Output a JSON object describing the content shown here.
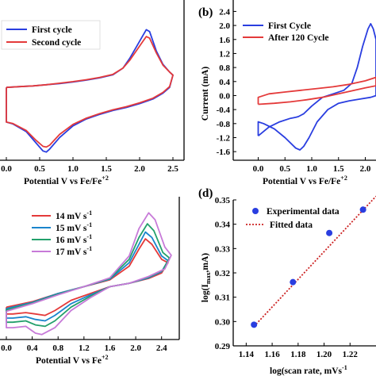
{
  "chart_data": [
    {
      "panel": "",
      "type": "line",
      "xlabel": "Potential V vs Fe/Fe",
      "xlabel_sup": "+2",
      "ylabel": "",
      "xlim": [
        0.0,
        2.5
      ],
      "xticks": [
        "0.0",
        "0.5",
        "1.0",
        "1.5",
        "2.0",
        "2.5"
      ],
      "yticks": [],
      "legend": "top-left",
      "series": [
        {
          "name": "First cycle",
          "color": "#2a3ee0",
          "values": [
            [
              0.0,
              0.6
            ],
            [
              0.2,
              0.62
            ],
            [
              0.4,
              0.64
            ],
            [
              0.6,
              0.67
            ],
            [
              0.8,
              0.7
            ],
            [
              1.0,
              0.74
            ],
            [
              1.2,
              0.79
            ],
            [
              1.4,
              0.85
            ],
            [
              1.6,
              0.93
            ],
            [
              1.75,
              1.1
            ],
            [
              1.85,
              1.35
            ],
            [
              1.95,
              1.65
            ],
            [
              2.05,
              1.95
            ],
            [
              2.1,
              2.1
            ],
            [
              2.15,
              2.05
            ],
            [
              2.25,
              1.55
            ],
            [
              2.35,
              1.2
            ],
            [
              2.45,
              1.0
            ],
            [
              2.5,
              0.92
            ],
            [
              2.45,
              0.6
            ],
            [
              2.35,
              0.45
            ],
            [
              2.2,
              0.3
            ],
            [
              2.0,
              0.18
            ],
            [
              1.8,
              0.08
            ],
            [
              1.6,
              0.0
            ],
            [
              1.4,
              -0.1
            ],
            [
              1.2,
              -0.22
            ],
            [
              1.0,
              -0.4
            ],
            [
              0.8,
              -0.7
            ],
            [
              0.65,
              -1.0
            ],
            [
              0.6,
              -1.08
            ],
            [
              0.55,
              -1.05
            ],
            [
              0.45,
              -0.85
            ],
            [
              0.3,
              -0.55
            ],
            [
              0.1,
              -0.35
            ],
            [
              0.0,
              -0.3
            ],
            [
              0.0,
              0.6
            ]
          ]
        },
        {
          "name": "Second cycle",
          "color": "#e43a3a",
          "values": [
            [
              0.0,
              0.6
            ],
            [
              0.2,
              0.62
            ],
            [
              0.4,
              0.64
            ],
            [
              0.6,
              0.67
            ],
            [
              0.8,
              0.71
            ],
            [
              1.0,
              0.75
            ],
            [
              1.2,
              0.8
            ],
            [
              1.4,
              0.86
            ],
            [
              1.6,
              0.94
            ],
            [
              1.75,
              1.1
            ],
            [
              1.85,
              1.3
            ],
            [
              1.95,
              1.55
            ],
            [
              2.05,
              1.8
            ],
            [
              2.1,
              1.92
            ],
            [
              2.15,
              1.88
            ],
            [
              2.25,
              1.5
            ],
            [
              2.35,
              1.18
            ],
            [
              2.45,
              1.0
            ],
            [
              2.5,
              0.92
            ],
            [
              2.45,
              0.62
            ],
            [
              2.35,
              0.47
            ],
            [
              2.2,
              0.32
            ],
            [
              2.0,
              0.2
            ],
            [
              1.8,
              0.1
            ],
            [
              1.6,
              0.02
            ],
            [
              1.4,
              -0.08
            ],
            [
              1.2,
              -0.2
            ],
            [
              1.0,
              -0.36
            ],
            [
              0.8,
              -0.62
            ],
            [
              0.65,
              -0.9
            ],
            [
              0.6,
              -0.95
            ],
            [
              0.55,
              -0.93
            ],
            [
              0.45,
              -0.78
            ],
            [
              0.3,
              -0.52
            ],
            [
              0.1,
              -0.34
            ],
            [
              0.0,
              -0.3
            ],
            [
              0.0,
              0.6
            ]
          ]
        }
      ]
    },
    {
      "panel": "(b)",
      "type": "line",
      "xlabel": "Potential V vs Fe/Fe",
      "xlabel_sup": "+2",
      "ylabel": "Current (mA)",
      "xlim": [
        -0.2,
        2.2
      ],
      "ylim": [
        -1.8,
        2.5
      ],
      "xticks": [
        "0.0",
        "0.5",
        "1.0",
        "1.5",
        "2.0"
      ],
      "yticks": [
        "2.4",
        "2.0",
        "1.6",
        "1.2",
        "0.8",
        "0.4",
        "0.0",
        "-0.4",
        "-0.8",
        "-1.2",
        "-1.6"
      ],
      "legend": "top-left",
      "series": [
        {
          "name": "First Cycle",
          "color": "#2a3ee0",
          "values": [
            [
              0.0,
              -1.15
            ],
            [
              0.2,
              -0.9
            ],
            [
              0.4,
              -0.75
            ],
            [
              0.6,
              -0.65
            ],
            [
              0.7,
              -0.62
            ],
            [
              0.75,
              -0.6
            ],
            [
              0.85,
              -0.52
            ],
            [
              1.0,
              -0.3
            ],
            [
              1.2,
              -0.05
            ],
            [
              1.4,
              0.05
            ],
            [
              1.6,
              0.15
            ],
            [
              1.75,
              0.35
            ],
            [
              1.85,
              0.8
            ],
            [
              1.95,
              1.4
            ],
            [
              2.05,
              1.9
            ],
            [
              2.1,
              2.05
            ],
            [
              2.15,
              1.9
            ],
            [
              2.2,
              1.6
            ],
            [
              2.2,
              0.0
            ],
            [
              2.1,
              -0.05
            ],
            [
              1.9,
              -0.1
            ],
            [
              1.7,
              -0.15
            ],
            [
              1.5,
              -0.22
            ],
            [
              1.3,
              -0.4
            ],
            [
              1.1,
              -0.75
            ],
            [
              0.95,
              -1.2
            ],
            [
              0.85,
              -1.45
            ],
            [
              0.78,
              -1.55
            ],
            [
              0.7,
              -1.5
            ],
            [
              0.5,
              -1.2
            ],
            [
              0.3,
              -0.95
            ],
            [
              0.1,
              -0.8
            ],
            [
              0.0,
              -0.75
            ],
            [
              0.0,
              -1.15
            ]
          ]
        },
        {
          "name": "After 120 Cycle",
          "color": "#e43a3a",
          "values": [
            [
              0.0,
              -0.25
            ],
            [
              0.3,
              -0.22
            ],
            [
              0.6,
              -0.18
            ],
            [
              0.9,
              -0.12
            ],
            [
              1.2,
              -0.05
            ],
            [
              1.5,
              0.05
            ],
            [
              1.8,
              0.15
            ],
            [
              2.0,
              0.22
            ],
            [
              2.2,
              0.28
            ],
            [
              2.2,
              0.52
            ],
            [
              2.0,
              0.42
            ],
            [
              1.7,
              0.32
            ],
            [
              1.4,
              0.25
            ],
            [
              1.1,
              0.2
            ],
            [
              0.8,
              0.15
            ],
            [
              0.5,
              0.1
            ],
            [
              0.2,
              0.05
            ],
            [
              0.0,
              -0.05
            ],
            [
              0.0,
              -0.25
            ]
          ]
        }
      ]
    },
    {
      "panel": "",
      "type": "line",
      "xlabel": "Potential V vs Fe",
      "xlabel_sup": "+2",
      "ylabel": "",
      "xlim": [
        0.0,
        2.6
      ],
      "xticks": [
        "0.0",
        "0.4",
        "0.8",
        "1.2",
        "1.6",
        "2.0",
        "2.4"
      ],
      "yticks": [],
      "legend": "top-left",
      "series": [
        {
          "name": "14 mV s",
          "name_sup": "-1",
          "color": "#e43a3a",
          "values": [
            [
              0.0,
              -0.3
            ],
            [
              0.4,
              -0.22
            ],
            [
              0.8,
              -0.1
            ],
            [
              1.2,
              0.0
            ],
            [
              1.6,
              0.1
            ],
            [
              1.9,
              0.3
            ],
            [
              2.05,
              0.55
            ],
            [
              2.15,
              0.7
            ],
            [
              2.25,
              0.62
            ],
            [
              2.4,
              0.4
            ],
            [
              2.5,
              0.35
            ],
            [
              2.4,
              0.2
            ],
            [
              2.2,
              0.12
            ],
            [
              1.9,
              0.05
            ],
            [
              1.6,
              0.0
            ],
            [
              1.3,
              -0.1
            ],
            [
              1.0,
              -0.2
            ],
            [
              0.75,
              -0.35
            ],
            [
              0.6,
              -0.42
            ],
            [
              0.45,
              -0.4
            ],
            [
              0.3,
              -0.38
            ],
            [
              0.1,
              -0.4
            ],
            [
              0.0,
              -0.4
            ],
            [
              0.0,
              -0.3
            ]
          ]
        },
        {
          "name": "15 mV s",
          "name_sup": "-1",
          "color": "#1a85cc",
          "values": [
            [
              0.0,
              -0.32
            ],
            [
              0.4,
              -0.23
            ],
            [
              0.8,
              -0.1
            ],
            [
              1.2,
              0.0
            ],
            [
              1.6,
              0.11
            ],
            [
              1.9,
              0.35
            ],
            [
              2.05,
              0.62
            ],
            [
              2.15,
              0.8
            ],
            [
              2.25,
              0.72
            ],
            [
              2.4,
              0.45
            ],
            [
              2.5,
              0.38
            ],
            [
              2.4,
              0.22
            ],
            [
              2.2,
              0.13
            ],
            [
              1.9,
              0.05
            ],
            [
              1.6,
              0.0
            ],
            [
              1.3,
              -0.12
            ],
            [
              1.0,
              -0.25
            ],
            [
              0.75,
              -0.42
            ],
            [
              0.6,
              -0.5
            ],
            [
              0.45,
              -0.48
            ],
            [
              0.3,
              -0.44
            ],
            [
              0.1,
              -0.46
            ],
            [
              0.0,
              -0.46
            ],
            [
              0.0,
              -0.32
            ]
          ]
        },
        {
          "name": "16 mV s",
          "name_sup": "-1",
          "color": "#22a06b",
          "values": [
            [
              0.0,
              -0.34
            ],
            [
              0.4,
              -0.24
            ],
            [
              0.8,
              -0.11
            ],
            [
              1.2,
              0.0
            ],
            [
              1.6,
              0.12
            ],
            [
              1.9,
              0.4
            ],
            [
              2.05,
              0.72
            ],
            [
              2.18,
              0.92
            ],
            [
              2.28,
              0.82
            ],
            [
              2.42,
              0.5
            ],
            [
              2.52,
              0.42
            ],
            [
              2.42,
              0.24
            ],
            [
              2.2,
              0.14
            ],
            [
              1.9,
              0.05
            ],
            [
              1.6,
              0.0
            ],
            [
              1.3,
              -0.14
            ],
            [
              1.0,
              -0.3
            ],
            [
              0.75,
              -0.5
            ],
            [
              0.6,
              -0.58
            ],
            [
              0.45,
              -0.56
            ],
            [
              0.3,
              -0.5
            ],
            [
              0.1,
              -0.52
            ],
            [
              0.0,
              -0.52
            ],
            [
              0.0,
              -0.34
            ]
          ]
        },
        {
          "name": "17 mV s",
          "name_sup": "-1",
          "color": "#c77ad8",
          "values": [
            [
              0.0,
              -0.36
            ],
            [
              0.4,
              -0.25
            ],
            [
              0.8,
              -0.12
            ],
            [
              1.2,
              0.0
            ],
            [
              1.6,
              0.13
            ],
            [
              1.9,
              0.45
            ],
            [
              2.05,
              0.85
            ],
            [
              2.2,
              1.08
            ],
            [
              2.3,
              0.98
            ],
            [
              2.45,
              0.58
            ],
            [
              2.55,
              0.46
            ],
            [
              2.45,
              0.26
            ],
            [
              2.2,
              0.15
            ],
            [
              1.9,
              0.05
            ],
            [
              1.6,
              0.0
            ],
            [
              1.3,
              -0.16
            ],
            [
              1.0,
              -0.35
            ],
            [
              0.75,
              -0.6
            ],
            [
              0.55,
              -0.7
            ],
            [
              0.45,
              -0.68
            ],
            [
              0.3,
              -0.58
            ],
            [
              0.1,
              -0.6
            ],
            [
              0.0,
              -0.6
            ],
            [
              0.0,
              -0.36
            ]
          ]
        }
      ]
    },
    {
      "panel": "(d)",
      "type": "scatter",
      "xlabel": "log(scan rate, mVs",
      "xlabel_sup": "-1",
      "ylabel": "log(I",
      "ylabel_sub": "max",
      "ylabel_tail": ",mA)",
      "xlim": [
        1.13,
        1.24
      ],
      "ylim": [
        0.29,
        0.35
      ],
      "xticks": [
        "1.14",
        "1.16",
        "1.18",
        "1.20",
        "1.22"
      ],
      "yticks": [
        "0.35",
        "0.34",
        "0.33",
        "0.32",
        "0.31",
        "0.30",
        "0.29"
      ],
      "legend": "top-left",
      "series": [
        {
          "name": "Experimental data",
          "color": "#2a3ee0",
          "values": [
            [
              1.146,
              0.2987
            ],
            [
              1.176,
              0.3162
            ],
            [
              1.204,
              0.3364
            ],
            [
              1.23,
              0.346
            ]
          ]
        },
        {
          "name": "Fitted data",
          "color": "#cc2222",
          "values": [
            [
              1.146,
              0.298
            ],
            [
              1.24,
              0.3515
            ]
          ]
        }
      ]
    }
  ]
}
